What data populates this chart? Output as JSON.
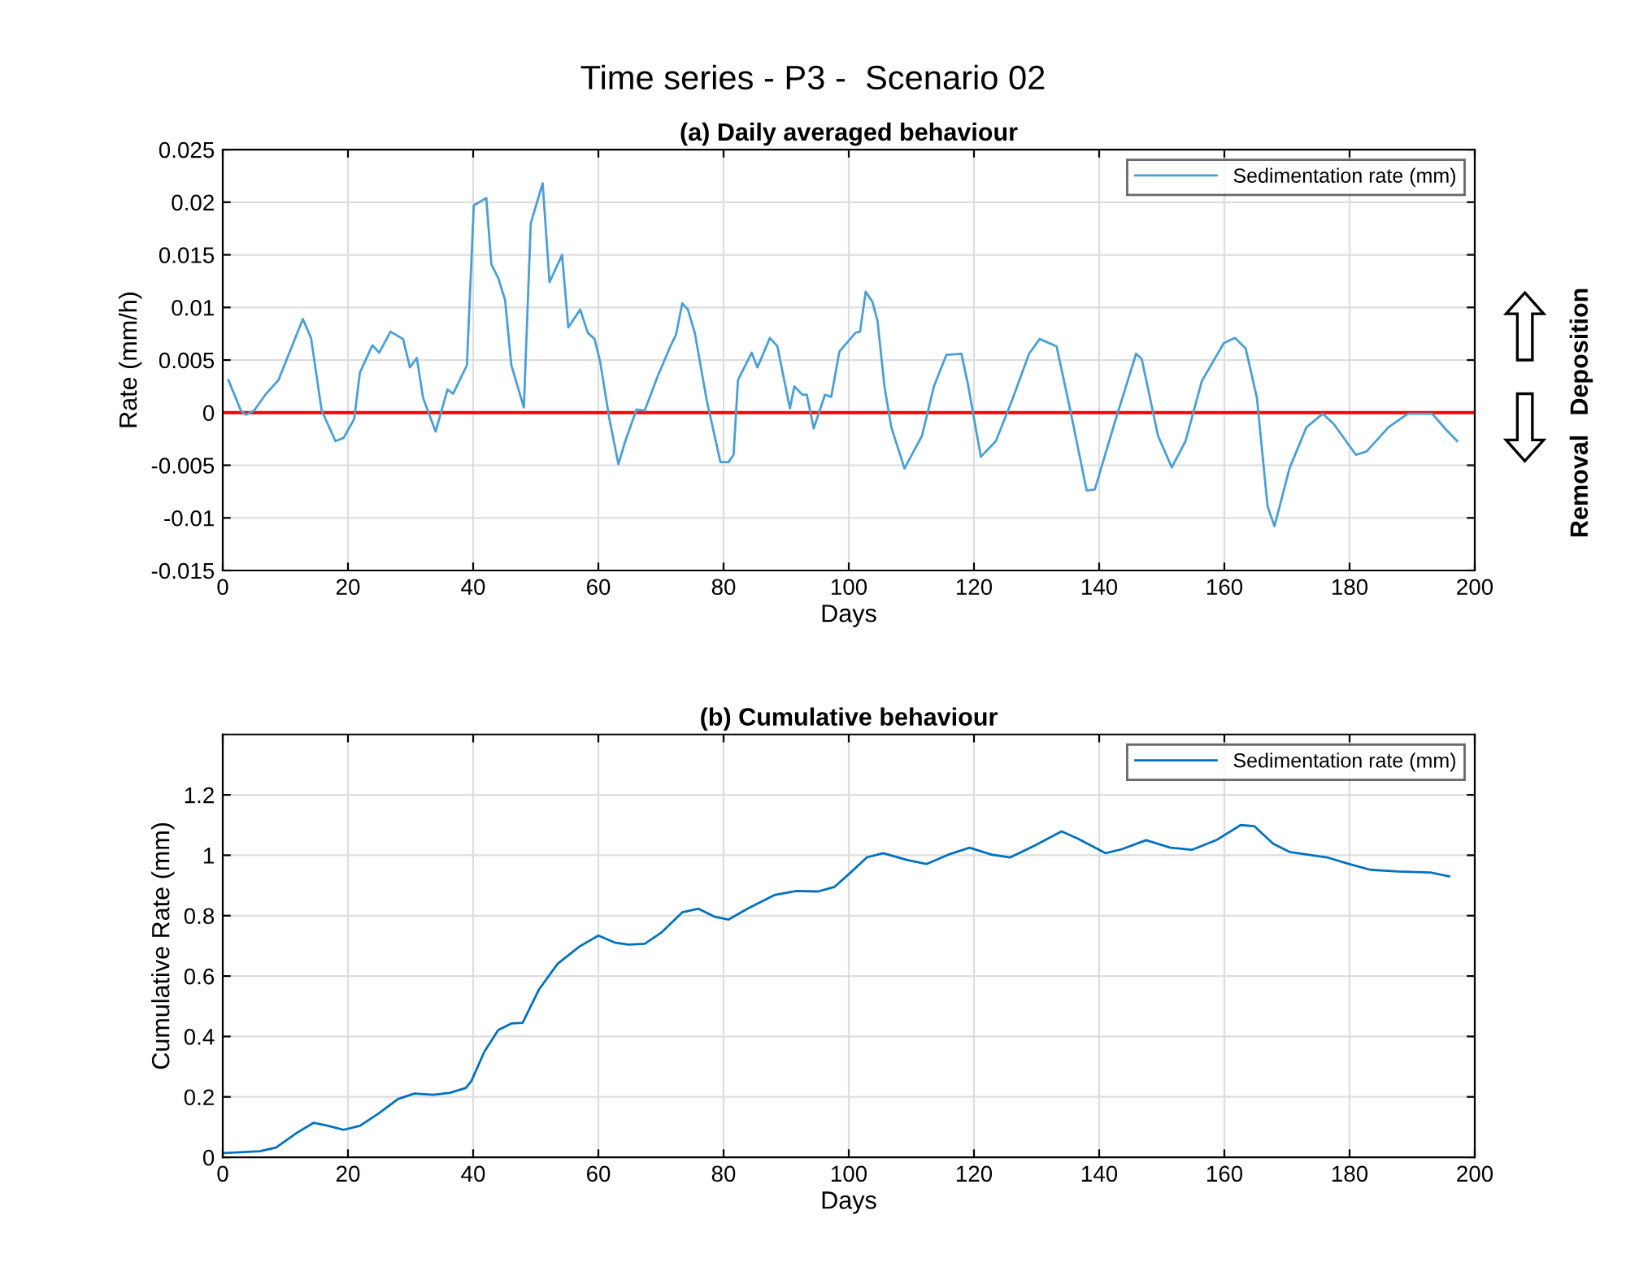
{
  "chart_data": [
    {
      "type": "line",
      "title": "Time series - P3 -  Scenario 02",
      "subtitle": "(a) Daily averaged behaviour",
      "xlabel": "Days",
      "ylabel": "Rate (mm/h)",
      "xlim": [
        0,
        200
      ],
      "xticks": [
        0,
        20,
        40,
        60,
        80,
        100,
        120,
        140,
        160,
        180,
        200
      ],
      "ylim": [
        -0.015,
        0.025
      ],
      "yticks": [
        -0.015,
        -0.01,
        -0.005,
        0,
        0.005,
        0.01,
        0.015,
        0.02,
        0.025
      ],
      "grid": true,
      "legend": "top right",
      "annotations": [
        "Removal",
        "Deposition"
      ],
      "ref_lines": [
        {
          "axis": "y",
          "value": 0,
          "label": null,
          "color": "#ff0000"
        }
      ],
      "series": [
        {
          "name": "Sedimentation rate (mm)",
          "color": "#4a9fd6",
          "x": [
            0.9,
            2.9,
            3.7,
            5,
            6.8,
            8.9,
            12.8,
            14.1,
            15.8,
            18,
            19.3,
            21,
            21.9,
            23.9,
            25,
            26.8,
            28.8,
            29.9,
            31,
            32,
            34,
            35.9,
            36.8,
            39,
            40.1,
            42.1,
            42.9,
            44,
            45.1,
            46.1,
            48.1,
            49.2,
            51.1,
            52.2,
            54.2,
            55.2,
            57.1,
            58.3,
            59.4,
            60.3,
            61.7,
            63.2,
            64.3,
            66.1,
            67.4,
            69.5,
            71.5,
            72.4,
            73.4,
            74.3,
            75.4,
            77.3,
            79.5,
            80.8,
            81.6,
            82.3,
            84.5,
            85.4,
            87.4,
            88.6,
            90.6,
            91.3,
            92.6,
            93.3,
            94.4,
            96.2,
            97.2,
            98.5,
            101.1,
            101.8,
            102.7,
            103.8,
            104.6,
            105.7,
            106.8,
            108.9,
            111.7,
            113.6,
            115.6,
            118,
            119.1,
            121.1,
            123.5,
            126.1,
            128.8,
            130.5,
            133.2,
            135.4,
            138,
            139.3,
            142.4,
            145.9,
            146.8,
            149.4,
            151.6,
            153.8,
            156.4,
            159.9,
            161.7,
            163.4,
            165.2,
            166.9,
            168,
            170.4,
            173.1,
            175.7,
            177.5,
            181,
            182.7,
            186.2,
            189.3,
            193.2,
            195.4,
            197.2
          ],
          "values": [
            0.0031,
            0.0002,
            -0.0002,
            0.0002,
            0.0017,
            0.0031,
            0.0089,
            0.0071,
            0.0002,
            -0.0027,
            -0.0024,
            -0.0006,
            0.0038,
            0.0064,
            0.0057,
            0.0077,
            0.007,
            0.0043,
            0.0052,
            0.0014,
            -0.0018,
            0.0022,
            0.0018,
            0.0045,
            0.0197,
            0.0204,
            0.0141,
            0.0128,
            0.0107,
            0.0045,
            0.0005,
            0.018,
            0.0218,
            0.0124,
            0.015,
            0.0081,
            0.0098,
            0.0076,
            0.007,
            0.0048,
            -0.0004,
            -0.0049,
            -0.0027,
            0.0003,
            0.0002,
            0.0035,
            0.0063,
            0.0074,
            0.0104,
            0.0098,
            0.0076,
            0.0012,
            -0.0047,
            -0.0047,
            -0.004,
            0.0031,
            0.0057,
            0.0043,
            0.0071,
            0.0063,
            0.0004,
            0.0025,
            0.0017,
            0.0017,
            -0.0015,
            0.0017,
            0.0015,
            0.0058,
            0.0076,
            0.0077,
            0.0115,
            0.0105,
            0.0087,
            0.0025,
            -0.0014,
            -0.0053,
            -0.0022,
            0.0025,
            0.0055,
            0.0056,
            0.0025,
            -0.0042,
            -0.0027,
            0.0012,
            0.0056,
            0.007,
            0.0063,
            0.0002,
            -0.0074,
            -0.0073,
            -0.0011,
            0.0056,
            0.0051,
            -0.0022,
            -0.0052,
            -0.0027,
            0.003,
            0.0066,
            0.0071,
            0.0061,
            0.0014,
            -0.0089,
            -0.0108,
            -0.0053,
            -0.0014,
            -0.0001,
            -0.0011,
            -0.004,
            -0.0037,
            -0.0014,
            -0.0001,
            -0.0001,
            -0.0016,
            -0.0027
          ]
        }
      ]
    },
    {
      "type": "line",
      "subtitle": "(b) Cumulative behaviour",
      "xlabel": "Days",
      "ylabel": "Cumulative Rate (mm)",
      "xlim": [
        0,
        200
      ],
      "xticks": [
        0,
        20,
        40,
        60,
        80,
        100,
        120,
        140,
        160,
        180,
        200
      ],
      "ylim": [
        0,
        1.4
      ],
      "yticks": [
        0,
        0.2,
        0.4,
        0.6,
        0.8,
        1,
        1.2
      ],
      "grid": true,
      "legend": "top right",
      "series": [
        {
          "name": "Sedimentation rate (mm)",
          "color": "#0072bd",
          "x": [
            0.3,
            5.9,
            8.5,
            11.9,
            14.5,
            16.7,
            19.3,
            21.9,
            24.9,
            28,
            30.6,
            33.6,
            36.2,
            38.8,
            39.7,
            41.8,
            44,
            46.1,
            47.9,
            50.5,
            53.5,
            57,
            60,
            62.6,
            64.8,
            67.4,
            70,
            73.4,
            76,
            78.6,
            80.8,
            83.8,
            88.1,
            91.6,
            95.1,
            97.7,
            100.3,
            102.9,
            105.5,
            109.4,
            112.4,
            115.9,
            119.3,
            122.8,
            125.8,
            129.7,
            134,
            136.6,
            141,
            143.6,
            147.5,
            151.4,
            154.8,
            158.7,
            162.6,
            164.8,
            167.8,
            170.4,
            176.4,
            179.9,
            183.3,
            187.7,
            192.9,
            195.9
          ],
          "values": [
            0.014,
            0.02,
            0.032,
            0.082,
            0.114,
            0.105,
            0.091,
            0.104,
            0.145,
            0.193,
            0.211,
            0.207,
            0.213,
            0.229,
            0.252,
            0.35,
            0.421,
            0.443,
            0.445,
            0.555,
            0.641,
            0.698,
            0.734,
            0.711,
            0.704,
            0.707,
            0.743,
            0.811,
            0.823,
            0.796,
            0.787,
            0.823,
            0.868,
            0.882,
            0.88,
            0.895,
            0.943,
            0.993,
            1.007,
            0.984,
            0.971,
            1.002,
            1.025,
            1.002,
            0.993,
            1.032,
            1.079,
            1.055,
            1.007,
            1.02,
            1.05,
            1.025,
            1.018,
            1.05,
            1.1,
            1.096,
            1.038,
            1.011,
            0.993,
            0.971,
            0.952,
            0.946,
            0.943,
            0.93
          ]
        }
      ]
    }
  ]
}
